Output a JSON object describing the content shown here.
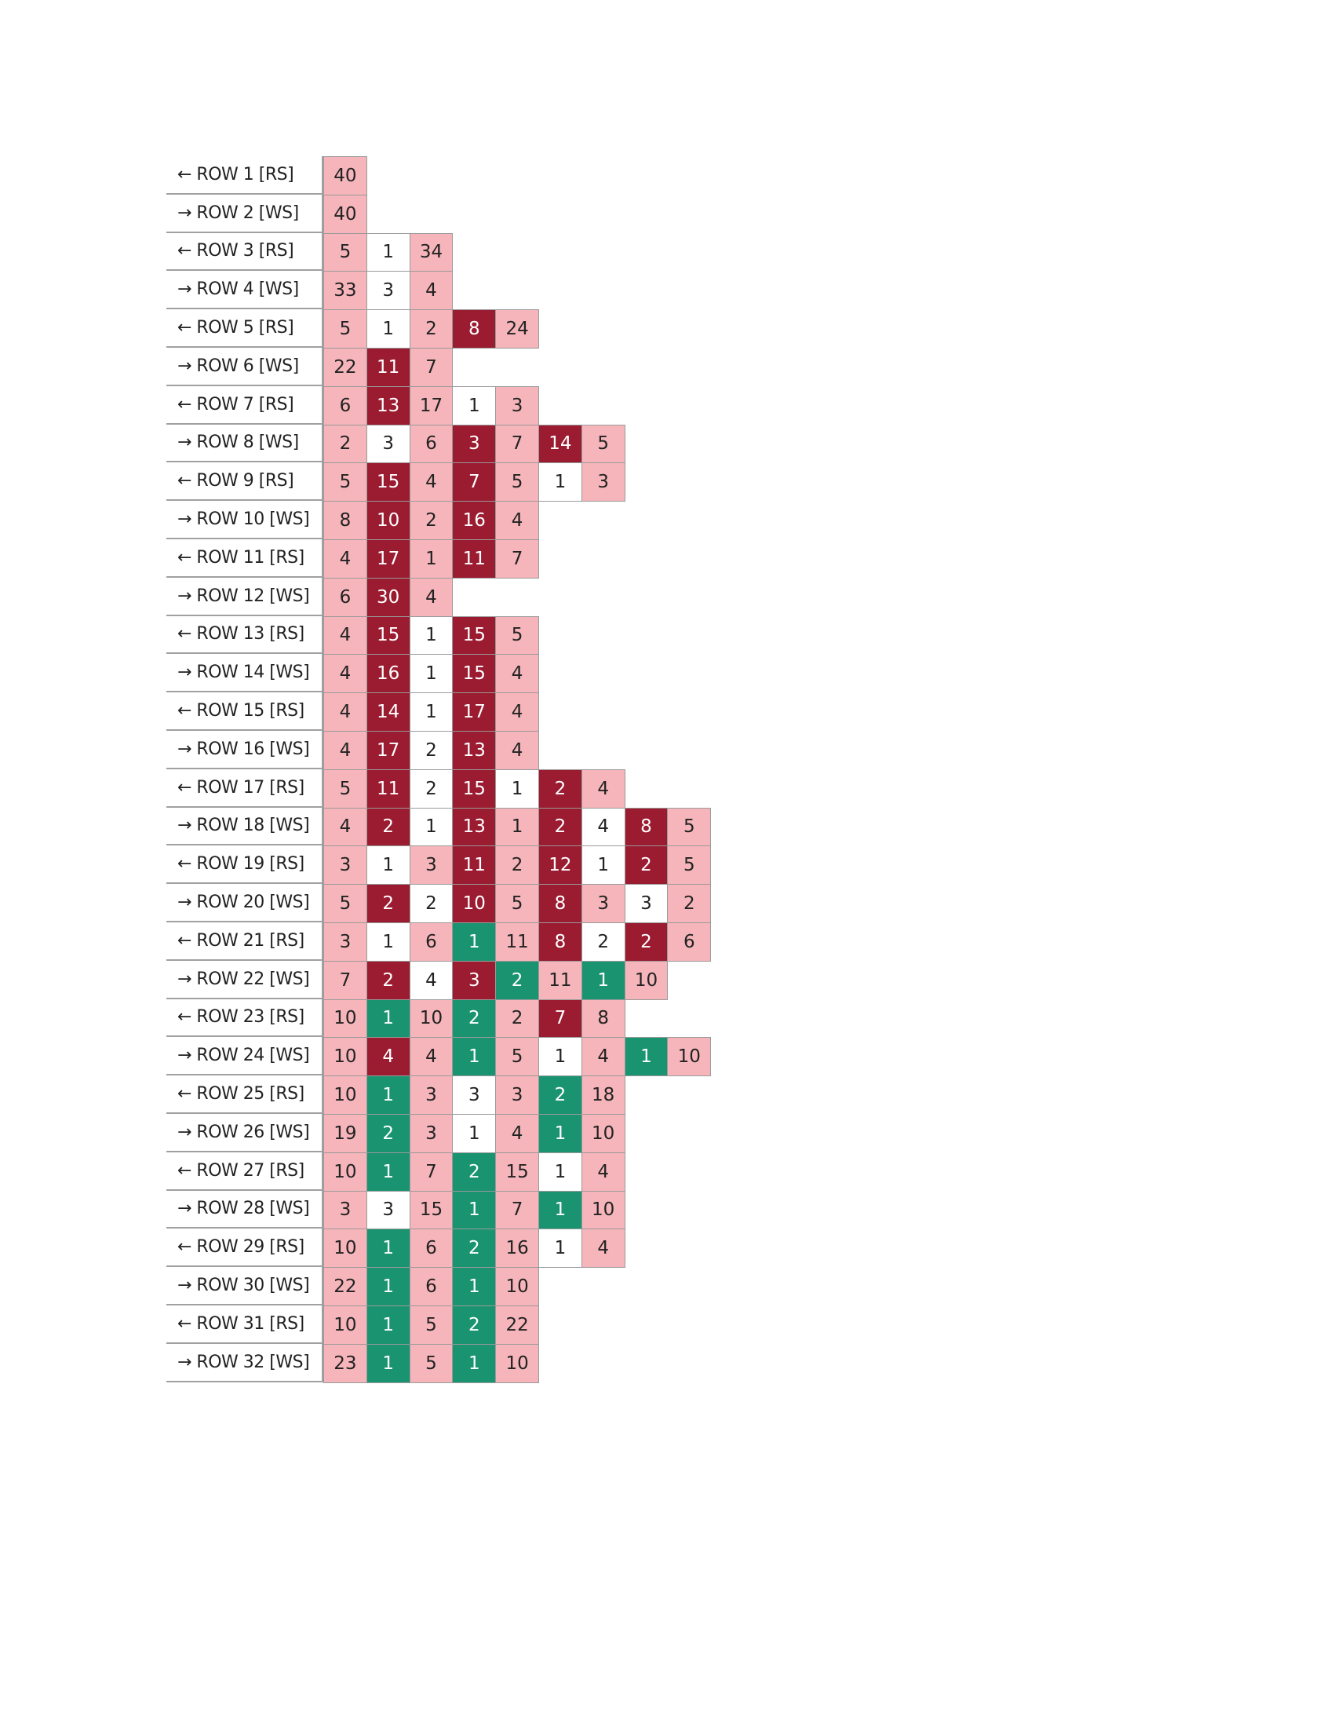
{
  "table": {
    "rows": [
      {
        "label": "← ROW 1 [RS]",
        "values": [
          40
        ],
        "colors": [
          "#f5b5ba"
        ]
      },
      {
        "label": "→ ROW 2 [WS]",
        "values": [
          40
        ],
        "colors": [
          "#f5b5ba"
        ]
      },
      {
        "label": "← ROW 3 [RS]",
        "values": [
          5,
          1,
          34
        ],
        "colors": [
          "#f5b5ba",
          "#ffffff",
          "#f5b5ba"
        ]
      },
      {
        "label": "→ ROW 4 [WS]",
        "values": [
          33,
          3,
          4
        ],
        "colors": [
          "#f5b5ba",
          "#ffffff",
          "#f5b5ba"
        ]
      },
      {
        "label": "← ROW 5 [RS]",
        "values": [
          5,
          1,
          2,
          8,
          24
        ],
        "colors": [
          "#f5b5ba",
          "#ffffff",
          "#f5b5ba",
          "#9b1b30",
          "#f5b5ba"
        ]
      },
      {
        "label": "→ ROW 6 [WS]",
        "values": [
          22,
          11,
          7
        ],
        "colors": [
          "#f5b5ba",
          "#9b1b30",
          "#f5b5ba"
        ]
      },
      {
        "label": "← ROW 7 [RS]",
        "values": [
          6,
          13,
          17,
          1,
          3
        ],
        "colors": [
          "#f5b5ba",
          "#9b1b30",
          "#f5b5ba",
          "#ffffff",
          "#f5b5ba"
        ]
      },
      {
        "label": "→ ROW 8 [WS]",
        "values": [
          2,
          3,
          6,
          3,
          7,
          14,
          5
        ],
        "colors": [
          "#f5b5ba",
          "#ffffff",
          "#f5b5ba",
          "#9b1b30",
          "#f5b5ba",
          "#9b1b30",
          "#f5b5ba"
        ]
      },
      {
        "label": "← ROW 9 [RS]",
        "values": [
          5,
          15,
          4,
          7,
          5,
          1,
          3
        ],
        "colors": [
          "#f5b5ba",
          "#9b1b30",
          "#f5b5ba",
          "#9b1b30",
          "#f5b5ba",
          "#ffffff",
          "#f5b5ba"
        ]
      },
      {
        "label": "→ ROW 10 [WS]",
        "values": [
          8,
          10,
          2,
          16,
          4
        ],
        "colors": [
          "#f5b5ba",
          "#9b1b30",
          "#f5b5ba",
          "#9b1b30",
          "#f5b5ba"
        ]
      },
      {
        "label": "← ROW 11 [RS]",
        "values": [
          4,
          17,
          1,
          11,
          7
        ],
        "colors": [
          "#f5b5ba",
          "#9b1b30",
          "#f5b5ba",
          "#9b1b30",
          "#f5b5ba"
        ]
      },
      {
        "label": "→ ROW 12 [WS]",
        "values": [
          6,
          30,
          4
        ],
        "colors": [
          "#f5b5ba",
          "#9b1b30",
          "#f5b5ba"
        ]
      },
      {
        "label": "← ROW 13 [RS]",
        "values": [
          4,
          15,
          1,
          15,
          5
        ],
        "colors": [
          "#f5b5ba",
          "#9b1b30",
          "#ffffff",
          "#9b1b30",
          "#f5b5ba"
        ]
      },
      {
        "label": "→ ROW 14 [WS]",
        "values": [
          4,
          16,
          1,
          15,
          4
        ],
        "colors": [
          "#f5b5ba",
          "#9b1b30",
          "#ffffff",
          "#9b1b30",
          "#f5b5ba"
        ]
      },
      {
        "label": "← ROW 15 [RS]",
        "values": [
          4,
          14,
          1,
          17,
          4
        ],
        "colors": [
          "#f5b5ba",
          "#9b1b30",
          "#ffffff",
          "#9b1b30",
          "#f5b5ba"
        ]
      },
      {
        "label": "→ ROW 16 [WS]",
        "values": [
          4,
          17,
          2,
          13,
          4
        ],
        "colors": [
          "#f5b5ba",
          "#9b1b30",
          "#ffffff",
          "#9b1b30",
          "#f5b5ba"
        ]
      },
      {
        "label": "← ROW 17 [RS]",
        "values": [
          5,
          11,
          2,
          15,
          1,
          2,
          4
        ],
        "colors": [
          "#f5b5ba",
          "#9b1b30",
          "#ffffff",
          "#9b1b30",
          "#ffffff",
          "#9b1b30",
          "#f5b5ba"
        ]
      },
      {
        "label": "→ ROW 18 [WS]",
        "values": [
          4,
          2,
          1,
          13,
          1,
          2,
          4,
          8,
          5
        ],
        "colors": [
          "#f5b5ba",
          "#9b1b30",
          "#ffffff",
          "#9b1b30",
          "#f5b5ba",
          "#9b1b30",
          "#ffffff",
          "#9b1b30",
          "#f5b5ba"
        ]
      },
      {
        "label": "← ROW 19 [RS]",
        "values": [
          3,
          1,
          3,
          11,
          2,
          12,
          1,
          2,
          5
        ],
        "colors": [
          "#f5b5ba",
          "#ffffff",
          "#f5b5ba",
          "#9b1b30",
          "#f5b5ba",
          "#9b1b30",
          "#ffffff",
          "#9b1b30",
          "#f5b5ba"
        ]
      },
      {
        "label": "→ ROW 20 [WS]",
        "values": [
          5,
          2,
          2,
          10,
          5,
          8,
          3,
          3,
          2
        ],
        "colors": [
          "#f5b5ba",
          "#9b1b30",
          "#ffffff",
          "#9b1b30",
          "#f5b5ba",
          "#9b1b30",
          "#f5b5ba",
          "#ffffff",
          "#f5b5ba"
        ]
      },
      {
        "label": "← ROW 21 [RS]",
        "values": [
          3,
          1,
          6,
          1,
          11,
          8,
          2,
          2,
          6
        ],
        "colors": [
          "#f5b5ba",
          "#ffffff",
          "#f5b5ba",
          "#1a9470",
          "#f5b5ba",
          "#9b1b30",
          "#ffffff",
          "#9b1b30",
          "#f5b5ba"
        ]
      },
      {
        "label": "→ ROW 22 [WS]",
        "values": [
          7,
          2,
          4,
          3,
          2,
          11,
          1,
          10
        ],
        "colors": [
          "#f5b5ba",
          "#9b1b30",
          "#ffffff",
          "#9b1b30",
          "#1a9470",
          "#f5b5ba",
          "#1a9470",
          "#f5b5ba"
        ]
      },
      {
        "label": "← ROW 23 [RS]",
        "values": [
          10,
          1,
          10,
          2,
          2,
          7,
          8
        ],
        "colors": [
          "#f5b5ba",
          "#1a9470",
          "#f5b5ba",
          "#1a9470",
          "#f5b5ba",
          "#9b1b30",
          "#f5b5ba"
        ]
      },
      {
        "label": "→ ROW 24 [WS]",
        "values": [
          10,
          4,
          4,
          1,
          5,
          1,
          4,
          1,
          10
        ],
        "colors": [
          "#f5b5ba",
          "#9b1b30",
          "#f5b5ba",
          "#1a9470",
          "#f5b5ba",
          "#ffffff",
          "#f5b5ba",
          "#1a9470",
          "#f5b5ba"
        ]
      },
      {
        "label": "← ROW 25 [RS]",
        "values": [
          10,
          1,
          3,
          3,
          3,
          2,
          18
        ],
        "colors": [
          "#f5b5ba",
          "#1a9470",
          "#f5b5ba",
          "#ffffff",
          "#f5b5ba",
          "#1a9470",
          "#f5b5ba"
        ]
      },
      {
        "label": "→ ROW 26 [WS]",
        "values": [
          19,
          2,
          3,
          1,
          4,
          1,
          10
        ],
        "colors": [
          "#f5b5ba",
          "#1a9470",
          "#f5b5ba",
          "#ffffff",
          "#f5b5ba",
          "#1a9470",
          "#f5b5ba"
        ]
      },
      {
        "label": "← ROW 27 [RS]",
        "values": [
          10,
          1,
          7,
          2,
          15,
          1,
          4
        ],
        "colors": [
          "#f5b5ba",
          "#1a9470",
          "#f5b5ba",
          "#1a9470",
          "#f5b5ba",
          "#ffffff",
          "#f5b5ba"
        ]
      },
      {
        "label": "→ ROW 28 [WS]",
        "values": [
          3,
          3,
          15,
          1,
          7,
          1,
          10
        ],
        "colors": [
          "#f5b5ba",
          "#ffffff",
          "#f5b5ba",
          "#1a9470",
          "#f5b5ba",
          "#1a9470",
          "#f5b5ba"
        ]
      },
      {
        "label": "← ROW 29 [RS]",
        "values": [
          10,
          1,
          6,
          2,
          16,
          1,
          4
        ],
        "colors": [
          "#f5b5ba",
          "#1a9470",
          "#f5b5ba",
          "#1a9470",
          "#f5b5ba",
          "#ffffff",
          "#f5b5ba"
        ]
      },
      {
        "label": "→ ROW 30 [WS]",
        "values": [
          22,
          1,
          6,
          1,
          10
        ],
        "colors": [
          "#f5b5ba",
          "#1a9470",
          "#f5b5ba",
          "#1a9470",
          "#f5b5ba"
        ]
      },
      {
        "label": "← ROW 31 [RS]",
        "values": [
          10,
          1,
          5,
          2,
          22
        ],
        "colors": [
          "#f5b5ba",
          "#1a9470",
          "#f5b5ba",
          "#1a9470",
          "#f5b5ba"
        ]
      },
      {
        "label": "→ ROW 32 [WS]",
        "values": [
          23,
          1,
          5,
          1,
          10
        ],
        "colors": [
          "#f5b5ba",
          "#1a9470",
          "#f5b5ba",
          "#1a9470",
          "#f5b5ba"
        ]
      }
    ]
  }
}
